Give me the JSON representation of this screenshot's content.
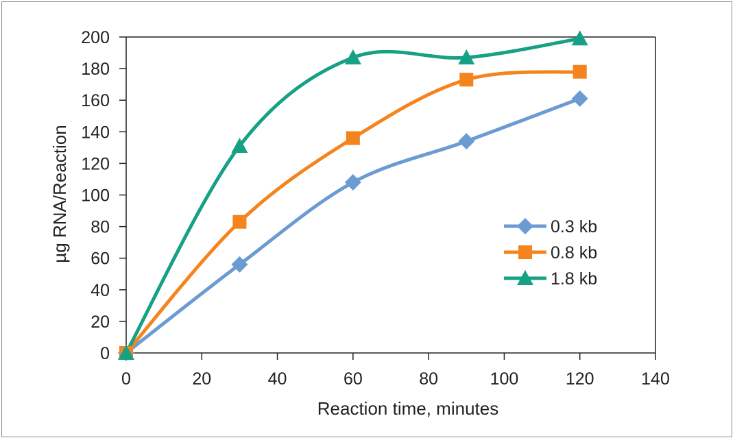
{
  "chart_data": {
    "type": "line",
    "title": "",
    "xlabel": "Reaction time, minutes",
    "ylabel": "µg RNA/Reaction",
    "xlim": [
      0,
      140
    ],
    "ylim": [
      0,
      200
    ],
    "xticks": [
      0,
      20,
      40,
      60,
      80,
      100,
      120,
      140
    ],
    "yticks": [
      0,
      20,
      40,
      60,
      80,
      100,
      120,
      140,
      160,
      180,
      200
    ],
    "grid": false,
    "legend_position": "right-center",
    "x": [
      0,
      30,
      60,
      90,
      120
    ],
    "series": [
      {
        "name": "0.3 kb",
        "marker": "diamond",
        "color": "#6b9bd2",
        "values": [
          0,
          56,
          108,
          134,
          161
        ]
      },
      {
        "name": "0.8 kb",
        "marker": "square",
        "color": "#f5841f",
        "values": [
          0,
          83,
          136,
          173,
          178
        ]
      },
      {
        "name": "1.8 kb",
        "marker": "triangle",
        "color": "#16a085",
        "values": [
          0,
          131,
          187,
          187,
          199
        ]
      }
    ]
  }
}
